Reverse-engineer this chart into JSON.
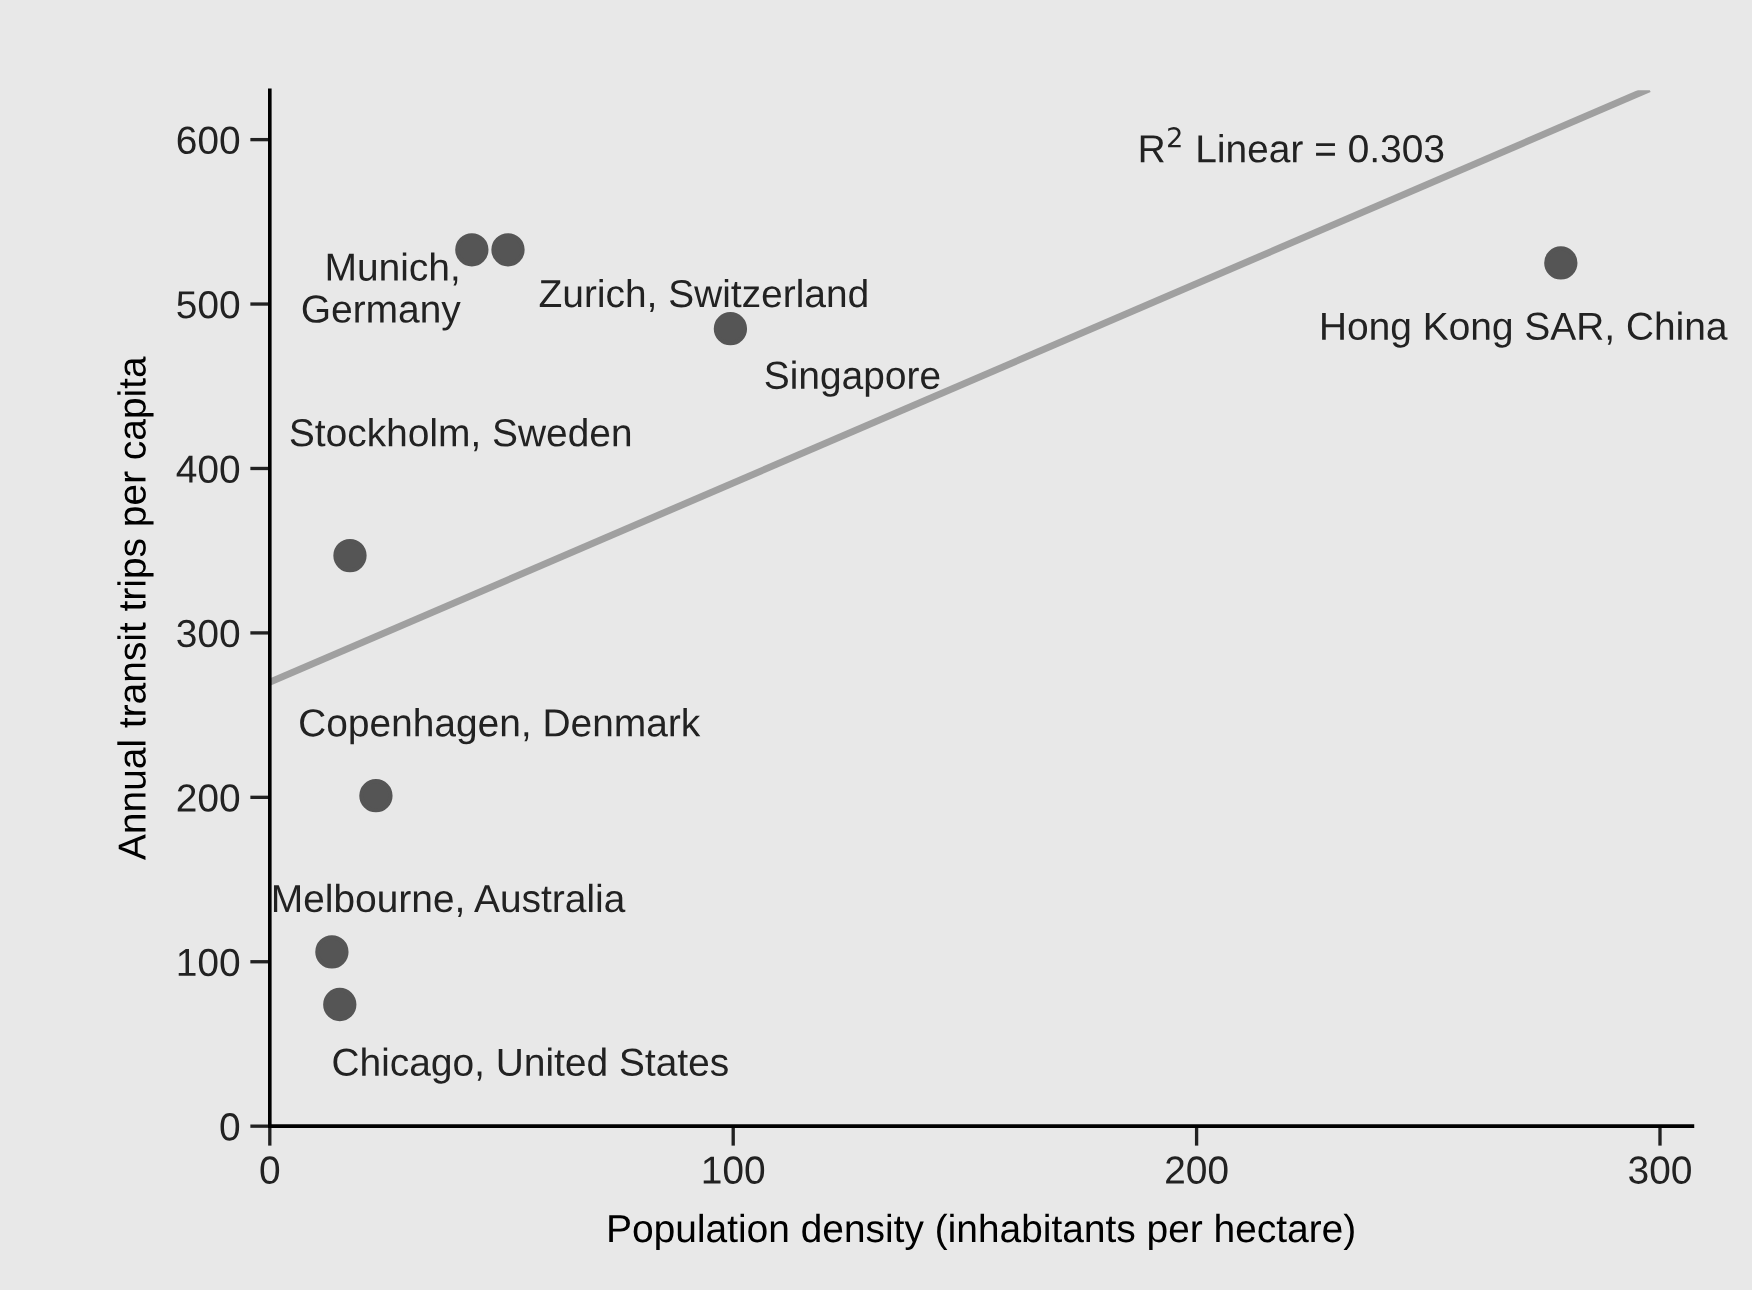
{
  "chart_data": {
    "type": "scatter",
    "xlabel": "Population density (inhabitants per hectare)",
    "ylabel": "Annual transit trips per capita",
    "series": [
      {
        "color": "#555555",
        "marker": "circle",
        "x": [
          43.6,
          51.4,
          99.4,
          278.6,
          17.3,
          22.9,
          13.4,
          15.1
        ],
        "values": [
          533,
          533,
          485,
          525,
          347,
          201,
          106,
          74
        ]
      },
      {
        "type": "line",
        "color": "#a0a0a0",
        "x": [
          0,
          297
        ],
        "values": [
          270,
          630
        ]
      }
    ],
    "annotations": [
      {
        "text": "Munich,\nGermany",
        "x": 43.6,
        "y": 533
      },
      {
        "text": "Zurich, Switzerland",
        "x": 51.4,
        "y": 533
      },
      {
        "text": "Singapore",
        "x": 99.4,
        "y": 485
      },
      {
        "text": "Hong Kong SAR, China",
        "x": 278.6,
        "y": 525
      },
      {
        "text": "Stockholm, Sweden",
        "x": 17.3,
        "y": 347
      },
      {
        "text": "Copenhagen, Denmark",
        "x": 22.9,
        "y": 201
      },
      {
        "text": "Melbourne, Australia",
        "x": 13.4,
        "y": 106
      },
      {
        "text": "Chicago, United States",
        "x": 15.1,
        "y": 74
      },
      "R$^{2}$ Linear = 0.303"
    ],
    "xlim": [
      0,
      307
    ],
    "ylim": [
      0,
      630
    ],
    "xticks": [
      0,
      100,
      200,
      300
    ],
    "yticks": [
      0,
      100,
      200,
      300,
      400,
      500,
      600
    ],
    "grid": false,
    "legend": false
  }
}
